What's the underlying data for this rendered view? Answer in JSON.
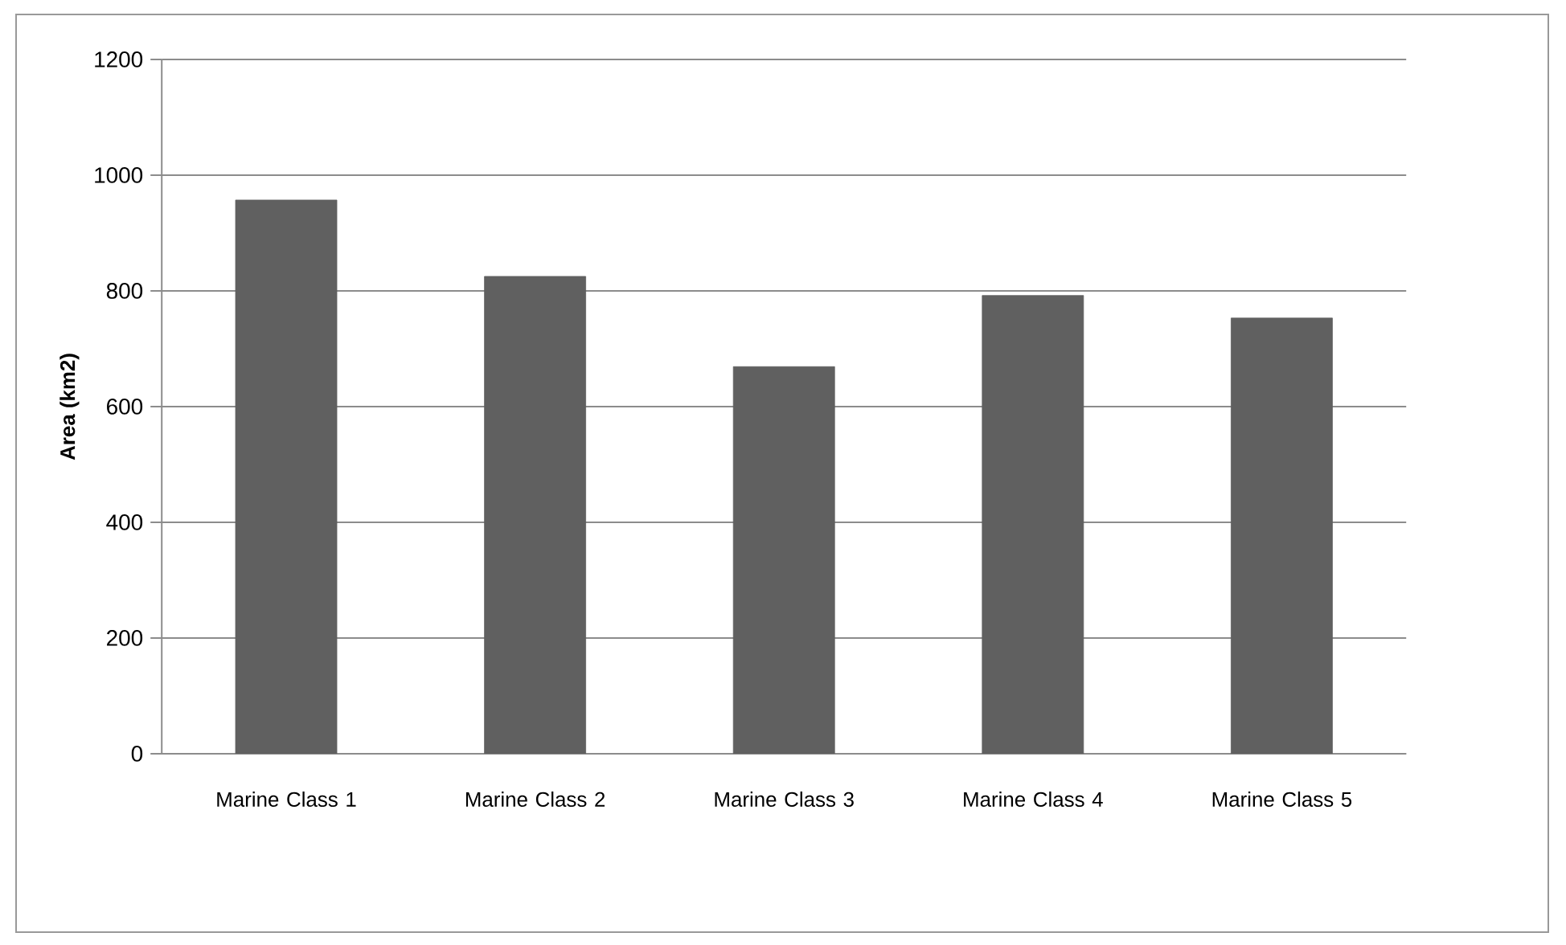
{
  "chart_data": {
    "type": "bar",
    "ylabel": "Area (km2)",
    "categories": [
      "Marine Class 1",
      "Marine Class 2",
      "Marine Class 3",
      "Marine Class 4",
      "Marine Class 5"
    ],
    "values": [
      957,
      825,
      669,
      792,
      753
    ],
    "color": "#606060",
    "ylim": [
      0,
      1200
    ],
    "yticks": [
      0,
      200,
      400,
      600,
      800,
      1000,
      1200
    ],
    "grid": "y"
  }
}
